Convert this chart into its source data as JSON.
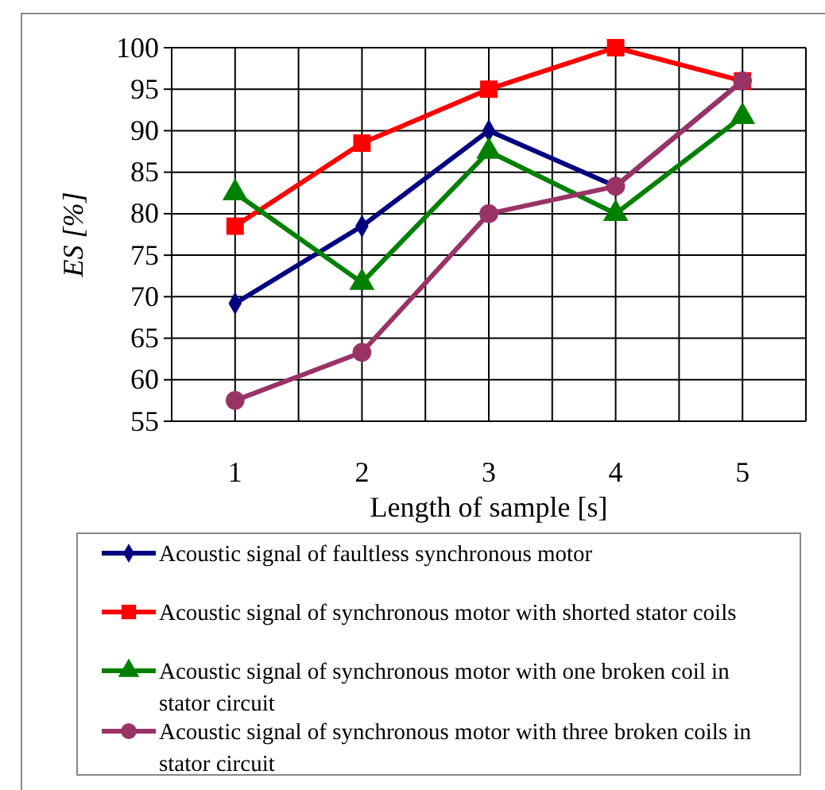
{
  "chart_data": {
    "type": "line",
    "xlabel": "Length of sample [s]",
    "ylabel": "ES  [%]",
    "categories": [
      "1",
      "2",
      "3",
      "4",
      "5"
    ],
    "ylim": [
      55,
      100
    ],
    "yticks": [
      55,
      60,
      65,
      70,
      75,
      80,
      85,
      90,
      95,
      100
    ],
    "grid": true,
    "legend": "bottom",
    "line_style": "solid",
    "series": [
      {
        "name": "Acoustic signal of faultless synchronous motor",
        "color": "#000080",
        "marker": "diamond",
        "values": [
          69.2,
          78.5,
          90,
          83.3,
          96
        ]
      },
      {
        "name": "Acoustic signal of synchronous motor with shorted stator coils",
        "color": "#ff0000",
        "marker": "square",
        "values": [
          78.5,
          88.5,
          95,
          100,
          96
        ]
      },
      {
        "name": "Acoustic signal of synchronous motor with one broken coil in stator circuit",
        "color": "#008000",
        "marker": "triangle",
        "values": [
          82.5,
          71.7,
          87.5,
          80,
          91.7
        ]
      },
      {
        "name": "Acoustic signal of synchronous motor with three broken coils in stator circuit",
        "color": "#993366",
        "marker": "circle",
        "values": [
          57.5,
          63.3,
          80,
          83.3,
          96
        ]
      }
    ]
  }
}
